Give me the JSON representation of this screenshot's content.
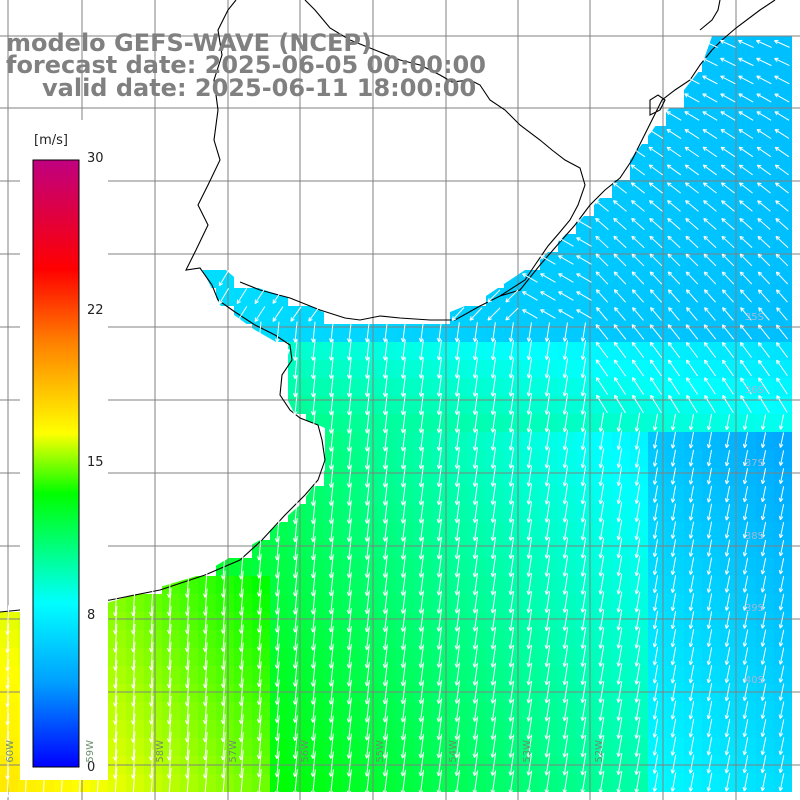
{
  "title": {
    "line1": "modelo GEFS-WAVE (NCEP)",
    "line2": "forecast date: 2025-06-05 00:00:00",
    "line3": "valid date: 2025-06-11 18:00:00"
  },
  "colorbar": {
    "unit": "[m/s]",
    "ticks": [
      "30",
      "22",
      "15",
      "8",
      "0"
    ],
    "min": 0,
    "max": 30,
    "colors": [
      "#0000ff",
      "#00a0ff",
      "#00ffff",
      "#00ff00",
      "#ffff00",
      "#ff8000",
      "#ff0000",
      "#c00080"
    ]
  },
  "map": {
    "variable": "wind speed and direction",
    "land_color": "#ffffff",
    "coast_color": "#000000",
    "grid_color": "#808080",
    "lat_labels": [
      "35S",
      "36S",
      "37S",
      "38S",
      "39S",
      "40S"
    ],
    "lon_labels": [
      "60W",
      "59W",
      "58W",
      "57W",
      "56W",
      "55W",
      "54W",
      "53W",
      "52W"
    ]
  }
}
